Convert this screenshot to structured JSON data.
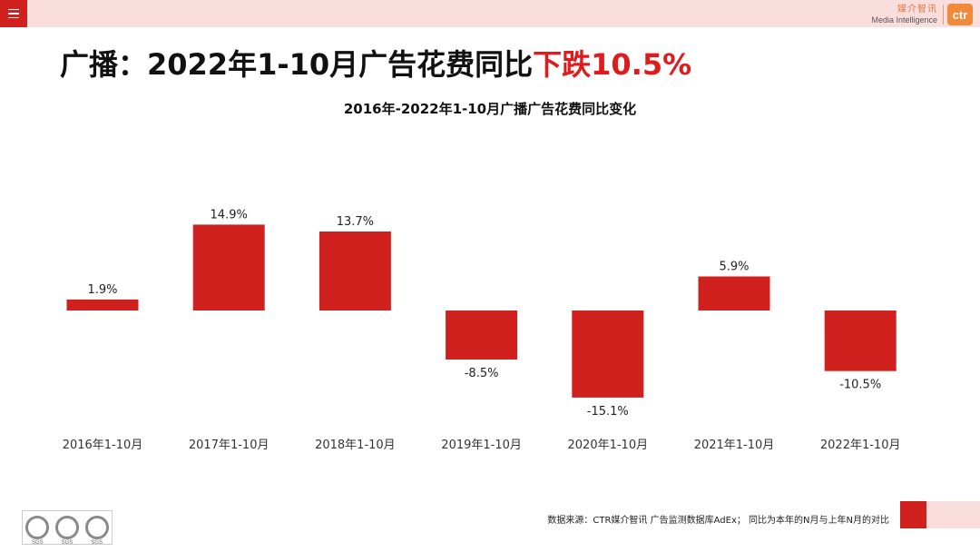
{
  "headline": {
    "prefix": "广播：2022年1-10月广告花费同比",
    "highlight": "下跌10.5%"
  },
  "logo": {
    "cn": "媒介智讯",
    "en": "Media Intelligence",
    "mark": "ctr"
  },
  "source_note": "数据来源：CTR媒介智讯 广告监测数据库AdEx； 同比为本年的N月与上年N月的对比",
  "certs": [
    {
      "label": "SGS"
    },
    {
      "label": "SGS"
    },
    {
      "label": "SGS"
    }
  ],
  "colors": {
    "bar": "#d0211e",
    "accent": "#e01b1b",
    "topbar": "#fadede"
  },
  "chart_data": {
    "type": "bar",
    "title": "2016年-2022年1-10月广播广告花费同比变化",
    "categories": [
      "2016年1-10月",
      "2017年1-10月",
      "2018年1-10月",
      "2019年1-10月",
      "2020年1-10月",
      "2021年1-10月",
      "2022年1-10月"
    ],
    "values": [
      1.9,
      14.9,
      13.7,
      -8.5,
      -15.1,
      5.9,
      -10.5
    ],
    "labels": [
      "1.9%",
      "14.9%",
      "13.7%",
      "-8.5%",
      "-15.1%",
      "5.9%",
      "-10.5%"
    ],
    "unit": "%",
    "xlabel": "",
    "ylabel": "",
    "grid": false,
    "legend": false
  }
}
